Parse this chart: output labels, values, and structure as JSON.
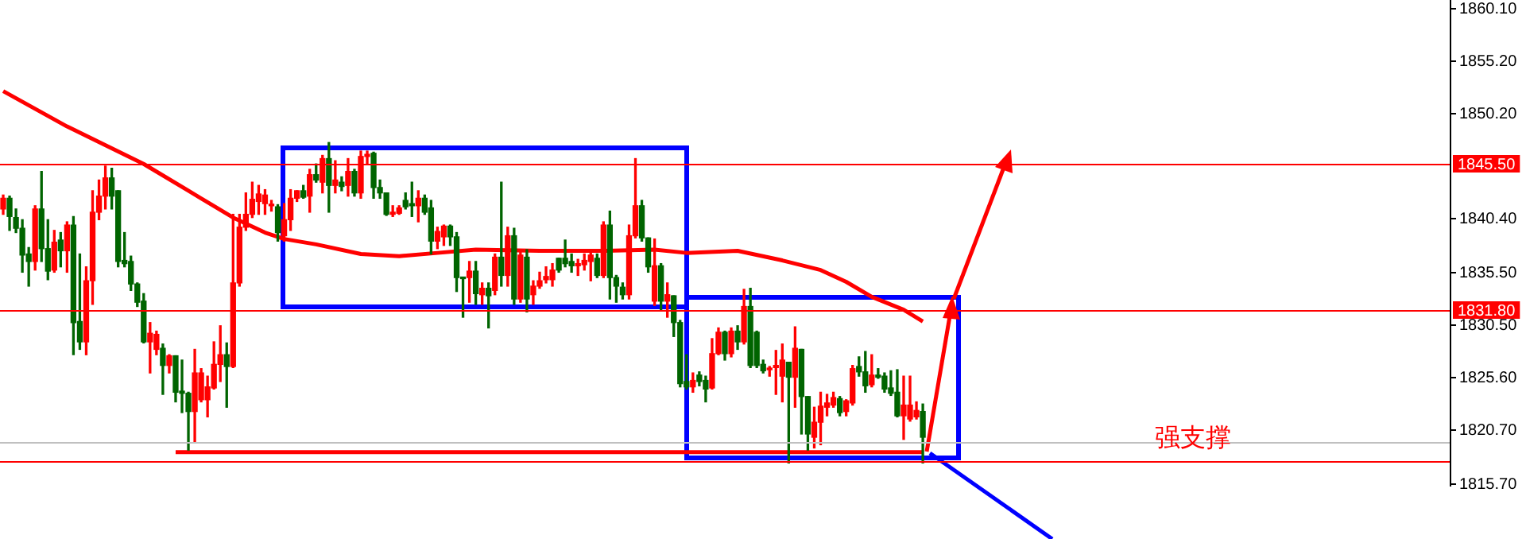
{
  "chart_data": {
    "type": "candlestick",
    "categories": [
      null,
      null,
      null,
      null,
      null,
      null,
      null,
      null,
      null,
      null,
      null,
      null,
      null,
      null,
      null,
      null,
      null,
      null,
      null,
      null,
      null,
      null,
      null,
      null,
      null,
      null,
      null,
      null,
      null,
      null,
      null,
      null,
      null,
      null,
      null,
      null,
      null,
      null,
      null,
      null,
      null,
      null,
      null,
      null,
      null,
      null,
      null,
      null,
      null,
      null,
      null,
      null,
      null,
      null,
      null,
      null,
      null,
      null,
      null,
      null,
      null,
      null,
      null,
      null,
      null,
      null,
      null,
      null,
      null,
      null,
      null,
      null,
      null,
      null,
      null,
      null,
      null,
      null,
      null,
      null,
      null,
      null,
      null,
      null,
      null,
      null,
      null,
      null,
      null,
      null,
      null,
      null,
      null,
      null,
      null,
      null,
      null,
      null,
      null,
      null,
      null,
      null,
      null,
      null,
      null,
      null,
      null,
      null,
      null,
      null,
      null,
      null,
      null,
      null,
      null,
      null,
      null,
      null,
      null,
      null,
      null,
      null,
      null,
      null,
      null,
      null,
      null,
      null,
      null,
      null,
      null,
      null,
      null,
      null,
      null,
      null,
      null,
      null,
      null,
      null,
      null,
      null,
      null,
      null,
      null,
      null,
      null,
      null,
      null,
      null,
      null,
      null,
      null,
      null,
      null,
      null,
      null,
      null,
      null,
      null,
      null,
      null,
      null,
      null,
      null,
      null,
      null,
      null,
      null,
      null,
      null,
      null,
      null,
      null,
      null,
      null,
      null,
      null,
      null,
      null,
      null,
      null,
      null,
      null,
      null,
      null,
      null,
      null,
      null,
      null,
      null,
      null,
      null,
      null,
      null,
      null,
      null,
      null,
      null,
      null,
      null,
      null,
      null,
      null,
      null,
      null,
      null,
      null,
      null,
      null,
      null,
      null,
      null,
      null,
      null,
      null,
      null,
      null,
      null,
      null,
      null,
      null,
      null,
      null,
      null,
      null,
      null
    ],
    "ohlc": [
      [
        1841.3,
        1842.6,
        1840.8,
        1842.3
      ],
      [
        1842.3,
        1842.5,
        1839.3,
        1840.6
      ],
      [
        1840.5,
        1841.3,
        1839.1,
        1839.5
      ],
      [
        1839.5,
        1840.3,
        1835.4,
        1837.0
      ],
      [
        1837.1,
        1837.7,
        1834.1,
        1836.4
      ],
      [
        1836.4,
        1841.6,
        1835.6,
        1841.3
      ],
      [
        1841.3,
        1844.8,
        1836.4,
        1837.6
      ],
      [
        1837.6,
        1840.3,
        1834.7,
        1835.5
      ],
      [
        1835.6,
        1839.3,
        1835.4,
        1838.2
      ],
      [
        1838.4,
        1839.1,
        1835.9,
        1837.4
      ],
      [
        1837.4,
        1840.1,
        1835.4,
        1839.8
      ],
      [
        1839.8,
        1840.6,
        1827.7,
        1830.7
      ],
      [
        1830.8,
        1837.1,
        1828.2,
        1828.9
      ],
      [
        1828.9,
        1835.9,
        1827.7,
        1834.6
      ],
      [
        1834.6,
        1843.0,
        1832.4,
        1841.0
      ],
      [
        1841.0,
        1844.0,
        1840.3,
        1842.5
      ],
      [
        1842.5,
        1845.3,
        1841.3,
        1844.2
      ],
      [
        1844.2,
        1845.1,
        1841.3,
        1842.5
      ],
      [
        1843.0,
        1843.0,
        1835.9,
        1836.4
      ],
      [
        1836.5,
        1839.1,
        1835.9,
        1836.2
      ],
      [
        1836.4,
        1836.9,
        1833.7,
        1834.3
      ],
      [
        1834.3,
        1834.4,
        1832.2,
        1832.6
      ],
      [
        1832.7,
        1833.4,
        1828.8,
        1828.9
      ],
      [
        1828.9,
        1830.7,
        1826.0,
        1829.7
      ],
      [
        1828.2,
        1829.9,
        1827.7,
        1829.6
      ],
      [
        1828.3,
        1828.7,
        1824.0,
        1826.7
      ],
      [
        1826.7,
        1827.7,
        1826.0,
        1827.6
      ],
      [
        1827.6,
        1827.6,
        1823.3,
        1824.2
      ],
      [
        1824.3,
        1827.2,
        1822.3,
        1824.1
      ],
      [
        1824.1,
        1824.2,
        1818.8,
        1822.4
      ],
      [
        1822.4,
        1828.2,
        1819.5,
        1826.0
      ],
      [
        1823.5,
        1826.4,
        1823.3,
        1826.0
      ],
      [
        1823.5,
        1825.7,
        1821.9,
        1824.7
      ],
      [
        1824.6,
        1828.9,
        1824.5,
        1826.8
      ],
      [
        1826.8,
        1830.4,
        1825.2,
        1827.7
      ],
      [
        1827.7,
        1828.8,
        1822.8,
        1826.6
      ],
      [
        1826.6,
        1840.8,
        1826.5,
        1834.4
      ],
      [
        1834.4,
        1840.8,
        1834.1,
        1839.6
      ],
      [
        1839.6,
        1842.8,
        1839.3,
        1840.8
      ],
      [
        1840.8,
        1843.8,
        1840.5,
        1842.2
      ],
      [
        1842.0,
        1843.5,
        1840.8,
        1842.7
      ],
      [
        1841.8,
        1843.1,
        1840.8,
        1842.6
      ],
      [
        1841.6,
        1842.1,
        1841.1,
        1841.7
      ],
      [
        1841.5,
        1841.7,
        1838.3,
        1839.1
      ],
      [
        1838.8,
        1841.8,
        1838.3,
        1840.3
      ],
      [
        1840.3,
        1843.1,
        1839.3,
        1842.3
      ],
      [
        1842.3,
        1843.0,
        1842.0,
        1843.0
      ],
      [
        1843.0,
        1843.5,
        1842.3,
        1842.4
      ],
      [
        1842.5,
        1845.0,
        1841.0,
        1844.5
      ],
      [
        1844.5,
        1845.5,
        1843.8,
        1844.0
      ],
      [
        1843.8,
        1846.3,
        1842.8,
        1846.0
      ],
      [
        1846.0,
        1847.5,
        1841.0,
        1843.5
      ],
      [
        1843.5,
        1845.8,
        1842.8,
        1844.0
      ],
      [
        1843.8,
        1844.3,
        1843.0,
        1843.4
      ],
      [
        1843.5,
        1846.0,
        1842.5,
        1844.8
      ],
      [
        1844.8,
        1845.0,
        1842.5,
        1842.8
      ],
      [
        1842.8,
        1846.7,
        1842.3,
        1846.2
      ],
      [
        1846.2,
        1846.7,
        1845.5,
        1846.4
      ],
      [
        1846.5,
        1846.6,
        1842.3,
        1843.3
      ],
      [
        1843.3,
        1844.0,
        1842.3,
        1842.8
      ],
      [
        1842.8,
        1842.8,
        1840.7,
        1840.8
      ],
      [
        1840.8,
        1841.6,
        1840.6,
        1841.0
      ],
      [
        1840.9,
        1841.6,
        1840.8,
        1841.4
      ],
      [
        1842.1,
        1842.8,
        1841.3,
        1841.5
      ],
      [
        1841.8,
        1843.8,
        1840.6,
        1841.6
      ],
      [
        1841.6,
        1843.0,
        1840.1,
        1842.3
      ],
      [
        1842.3,
        1842.6,
        1840.8,
        1841.0
      ],
      [
        1841.4,
        1842.1,
        1837.1,
        1838.3
      ],
      [
        1838.3,
        1839.6,
        1837.6,
        1839.2
      ],
      [
        1838.7,
        1839.8,
        1837.9,
        1839.7
      ],
      [
        1839.7,
        1839.8,
        1837.9,
        1838.7
      ],
      [
        1838.7,
        1839.1,
        1833.6,
        1834.9
      ],
      [
        1834.9,
        1834.9,
        1831.2,
        1834.8
      ],
      [
        1834.9,
        1836.4,
        1832.6,
        1835.5
      ],
      [
        1835.5,
        1836.4,
        1832.4,
        1833.4
      ],
      [
        1833.3,
        1834.4,
        1832.4,
        1833.9
      ],
      [
        1833.9,
        1834.4,
        1830.2,
        1833.2
      ],
      [
        1833.7,
        1837.1,
        1833.3,
        1836.8
      ],
      [
        1836.8,
        1843.8,
        1834.1,
        1835.1
      ],
      [
        1835.1,
        1839.6,
        1834.1,
        1838.8
      ],
      [
        1838.8,
        1839.5,
        1832.4,
        1832.9
      ],
      [
        1832.9,
        1837.5,
        1832.6,
        1837.0
      ],
      [
        1836.8,
        1837.5,
        1831.7,
        1832.9
      ],
      [
        1833.3,
        1834.6,
        1832.4,
        1834.1
      ],
      [
        1834.1,
        1835.4,
        1833.9,
        1834.6
      ],
      [
        1834.7,
        1835.9,
        1834.4,
        1835.0
      ],
      [
        1834.7,
        1836.2,
        1834.1,
        1835.6
      ],
      [
        1836.7,
        1836.7,
        1835.4,
        1835.6
      ],
      [
        1836.7,
        1838.4,
        1835.9,
        1836.2
      ],
      [
        1836.4,
        1837.1,
        1835.4,
        1836.0
      ],
      [
        1836.0,
        1836.6,
        1835.1,
        1836.2
      ],
      [
        1836.1,
        1837.1,
        1835.6,
        1836.5
      ],
      [
        1836.4,
        1837.2,
        1834.6,
        1837.0
      ],
      [
        1836.7,
        1837.1,
        1834.9,
        1835.1
      ],
      [
        1835.1,
        1840.1,
        1834.9,
        1839.8
      ],
      [
        1839.8,
        1841.1,
        1832.9,
        1834.9
      ],
      [
        1834.9,
        1835.1,
        1832.6,
        1834.1
      ],
      [
        1834.0,
        1834.4,
        1832.9,
        1833.3
      ],
      [
        1833.3,
        1839.8,
        1832.9,
        1838.8
      ],
      [
        1838.8,
        1846.0,
        1838.6,
        1841.6
      ],
      [
        1841.6,
        1842.1,
        1838.3,
        1838.6
      ],
      [
        1838.6,
        1838.6,
        1835.4,
        1835.9
      ],
      [
        1832.7,
        1838.5,
        1832.3,
        1836.0
      ],
      [
        1836.0,
        1836.2,
        1831.9,
        1832.7
      ],
      [
        1832.7,
        1834.4,
        1831.2,
        1833.3
      ],
      [
        1833.2,
        1833.2,
        1829.4,
        1830.7
      ],
      [
        1830.7,
        1830.9,
        1824.7,
        1825.0
      ],
      [
        1825.2,
        1827.7,
        1824.5,
        1824.7
      ],
      [
        1824.7,
        1826.0,
        1824.2,
        1825.3
      ],
      [
        1825.8,
        1826.1,
        1824.8,
        1825.2
      ],
      [
        1825.3,
        1825.7,
        1823.3,
        1824.5
      ],
      [
        1824.6,
        1829.2,
        1824.5,
        1827.8
      ],
      [
        1827.8,
        1830.2,
        1827.7,
        1829.8
      ],
      [
        1829.8,
        1829.9,
        1827.2,
        1827.8
      ],
      [
        1827.8,
        1830.2,
        1827.5,
        1829.9
      ],
      [
        1829.9,
        1830.4,
        1828.2,
        1828.9
      ],
      [
        1828.9,
        1833.8,
        1828.7,
        1832.2
      ],
      [
        1832.2,
        1833.9,
        1826.5,
        1826.7
      ],
      [
        1829.8,
        1829.9,
        1826.5,
        1826.7
      ],
      [
        1826.8,
        1827.2,
        1826.0,
        1826.2
      ],
      [
        1826.3,
        1826.6,
        1825.7,
        1826.4
      ],
      [
        1826.5,
        1828.1,
        1824.0,
        1826.7
      ],
      [
        1825.7,
        1828.7,
        1823.3,
        1827.2
      ],
      [
        1827.0,
        1827.0,
        1817.6,
        1825.6
      ],
      [
        1825.6,
        1830.3,
        1822.8,
        1828.3
      ],
      [
        1828.2,
        1828.2,
        1820.3,
        1823.8
      ],
      [
        1823.8,
        1823.8,
        1818.8,
        1820.3
      ],
      [
        1820.0,
        1822.8,
        1819.0,
        1821.4
      ],
      [
        1821.4,
        1824.2,
        1819.3,
        1822.9
      ],
      [
        1822.8,
        1824.0,
        1822.0,
        1823.2
      ],
      [
        1823.0,
        1824.2,
        1822.8,
        1823.7
      ],
      [
        1823.6,
        1823.8,
        1822.0,
        1822.3
      ],
      [
        1822.4,
        1823.5,
        1822.0,
        1823.4
      ],
      [
        1823.2,
        1826.7,
        1823.0,
        1826.4
      ],
      [
        1826.6,
        1827.5,
        1825.7,
        1826.1
      ],
      [
        1826.1,
        1828.0,
        1824.2,
        1824.8
      ],
      [
        1824.9,
        1827.7,
        1824.7,
        1825.8
      ],
      [
        1825.8,
        1826.4,
        1825.5,
        1825.6
      ],
      [
        1825.7,
        1826.0,
        1824.2,
        1824.5
      ],
      [
        1824.6,
        1826.2,
        1823.9,
        1824.1
      ],
      [
        1824.2,
        1826.3,
        1821.9,
        1822.0
      ],
      [
        1822.0,
        1825.7,
        1819.8,
        1823.0
      ],
      [
        1821.7,
        1825.7,
        1821.5,
        1823.0
      ],
      [
        1821.9,
        1823.3,
        1821.7,
        1822.5
      ],
      [
        1822.4,
        1823.1,
        1817.6,
        1820.0
      ],
      null,
      null,
      null,
      null,
      null,
      null,
      null,
      null,
      null,
      null,
      null,
      null,
      null,
      null,
      null,
      null,
      null,
      null,
      null,
      null,
      null,
      null,
      null,
      null,
      null,
      null,
      null,
      null,
      null,
      null,
      null,
      null,
      null,
      null,
      null,
      null,
      null,
      null,
      null,
      null,
      null,
      null,
      null,
      null,
      null,
      null,
      null,
      null,
      null,
      null,
      null,
      null,
      null,
      null,
      null,
      null,
      null,
      null,
      null,
      null,
      null,
      null,
      null,
      null,
      null,
      null,
      null,
      null,
      null,
      null,
      null,
      null,
      null,
      null,
      null,
      null,
      null,
      null,
      null,
      null,
      null,
      null
    ],
    "colors": [
      "#ff0000",
      "#006400",
      "#006400",
      "#006400",
      "#006400",
      "#ff0000",
      "#006400",
      "#006400",
      "#ff0000",
      "#006400",
      "#ff0000",
      "#006400",
      "#006400",
      "#ff0000",
      "#ff0000",
      "#ff0000",
      "#ff0000",
      "#006400",
      "#006400",
      "#006400",
      "#006400",
      "#006400",
      "#006400",
      "#ff0000",
      "#ff0000",
      "#006400",
      "#ff0000",
      "#006400",
      "#006400",
      "#006400",
      "#ff0000",
      "#ff0000",
      "#ff0000",
      "#ff0000",
      "#ff0000",
      "#006400",
      "#ff0000",
      "#ff0000",
      "#ff0000",
      "#ff0000",
      "#ff0000",
      "#ff0000",
      "#ff0000",
      "#006400",
      "#ff0000",
      "#ff0000",
      "#ff0000",
      "#006400",
      "#ff0000",
      "#006400",
      "#ff0000",
      "#006400",
      "#ff0000",
      "#006400",
      "#ff0000",
      "#006400",
      "#ff0000",
      "#ff0000",
      "#006400",
      "#006400",
      "#006400",
      "#ff0000",
      "#ff0000",
      "#006400",
      "#006400",
      "#ff0000",
      "#006400",
      "#006400",
      "#ff0000",
      "#ff0000",
      "#006400",
      "#006400",
      "#006400",
      "#ff0000",
      "#006400",
      "#ff0000",
      "#006400",
      "#ff0000",
      "#006400",
      "#ff0000",
      "#006400",
      "#ff0000",
      "#006400",
      "#ff0000",
      "#ff0000",
      "#ff0000",
      "#ff0000",
      "#006400",
      "#006400",
      "#006400",
      "#ff0000",
      "#ff0000",
      "#ff0000",
      "#006400",
      "#ff0000",
      "#006400",
      "#006400",
      "#006400",
      "#ff0000",
      "#ff0000",
      "#006400",
      "#006400",
      "#ff0000",
      "#006400",
      "#ff0000",
      "#006400",
      "#006400",
      "#006400",
      "#ff0000",
      "#006400",
      "#006400",
      "#ff0000",
      "#ff0000",
      "#006400",
      "#ff0000",
      "#006400",
      "#ff0000",
      "#006400",
      "#006400",
      "#006400",
      "#ff0000",
      "#ff0000",
      "#ff0000",
      "#006400",
      "#ff0000",
      "#006400",
      "#006400",
      "#ff0000",
      "#ff0000",
      "#ff0000",
      "#ff0000",
      "#006400",
      "#ff0000",
      "#ff0000",
      "#006400",
      "#006400",
      "#ff0000",
      "#006400",
      "#006400",
      "#006400",
      "#006400",
      "#ff0000",
      "#ff0000",
      "#ff0000",
      "#006400",
      null,
      null,
      null,
      null,
      null,
      null,
      null,
      null,
      null,
      null,
      null,
      null,
      null,
      null,
      null,
      null,
      null,
      null,
      null,
      null,
      null,
      null,
      null,
      null,
      null,
      null,
      null,
      null,
      null,
      null,
      null,
      null,
      null,
      null,
      null,
      null,
      null,
      null,
      null,
      null,
      null,
      null,
      null,
      null,
      null,
      null,
      null,
      null,
      null,
      null,
      null,
      null,
      null,
      null,
      null,
      null,
      null,
      null,
      null,
      null,
      null,
      null,
      null,
      null,
      null,
      null,
      null,
      null,
      null,
      null,
      null,
      null,
      null,
      null,
      null,
      null,
      null,
      null,
      null,
      null,
      null,
      null
    ],
    "series": [
      {
        "type": "line",
        "color": "#ff0000",
        "values": [
          1852.3,
          null,
          null,
          null,
          null,
          null,
          null,
          null,
          null,
          null,
          1849.0,
          null,
          null,
          null,
          null,
          null,
          null,
          null,
          null,
          null,
          null,
          null,
          1845.5,
          null,
          null,
          null,
          null,
          null,
          null,
          1843.0,
          null,
          null,
          null,
          null,
          null,
          null,
          1840.5,
          null,
          null,
          null,
          null,
          1839.1,
          null,
          null,
          1838.5,
          null,
          null,
          null,
          null,
          1838.0,
          null,
          null,
          null,
          null,
          null,
          null,
          1837.1,
          null,
          null,
          null,
          null,
          null,
          1836.9,
          null,
          null,
          null,
          null,
          null,
          1837.2,
          null,
          null,
          null,
          null,
          null,
          1837.5,
          null,
          null,
          null,
          null,
          null,
          null,
          null,
          null,
          null,
          1837.4,
          null,
          null,
          null,
          null,
          null,
          null,
          null,
          null,
          null,
          1837.4,
          null,
          null,
          null,
          null,
          null,
          null,
          null,
          1837.5,
          null,
          null,
          null,
          null,
          1837.2,
          null,
          null,
          null,
          null,
          null,
          null,
          null,
          1837.4,
          null,
          null,
          null,
          null,
          null,
          null,
          1836.5,
          null,
          null,
          null,
          null,
          null,
          1835.6,
          null,
          null,
          null,
          1834.5,
          null,
          null,
          null,
          1833.1,
          null,
          null,
          null,
          null,
          1831.9,
          null,
          null,
          1830.8,
          null,
          null,
          null,
          null,
          null,
          null,
          null,
          null,
          null,
          null,
          null,
          null,
          null,
          null,
          null,
          null,
          null,
          null,
          null,
          null,
          null,
          null,
          null,
          null,
          null,
          null,
          null,
          null,
          null,
          null,
          null,
          null,
          null,
          null,
          null,
          null,
          null,
          null,
          null,
          null,
          null,
          null,
          null,
          null,
          null,
          null,
          null,
          null,
          null,
          null,
          null,
          null,
          null,
          null,
          null,
          null,
          null,
          null,
          null,
          null,
          null,
          null,
          null,
          null,
          null,
          null,
          null,
          null,
          null,
          null,
          null,
          null,
          null,
          null,
          null,
          null,
          null,
          null,
          null,
          null,
          null,
          null
        ]
      },
      {
        "type": "line",
        "color": "#ff0000",
        "values": [
          null,
          null,
          null,
          null,
          null,
          null,
          null,
          null,
          null,
          null,
          null,
          null,
          null,
          null,
          null,
          null,
          null,
          null,
          null,
          null,
          null,
          null,
          null,
          null,
          null,
          null,
          null,
          1818.6,
          null,
          null,
          null,
          null,
          null,
          null,
          null,
          null,
          null,
          null,
          null,
          null,
          null,
          null,
          null,
          null,
          null,
          null,
          null,
          null,
          null,
          null,
          null,
          null,
          null,
          null,
          null,
          null,
          null,
          null,
          null,
          null,
          null,
          null,
          null,
          null,
          null,
          null,
          null,
          null,
          null,
          null,
          null,
          null,
          null,
          null,
          null,
          null,
          null,
          null,
          null,
          null,
          null,
          null,
          null,
          null,
          null,
          null,
          null,
          null,
          null,
          null,
          null,
          null,
          null,
          null,
          null,
          null,
          null,
          null,
          null,
          null,
          null,
          null,
          null,
          null,
          null,
          null,
          null,
          null,
          null,
          null,
          null,
          null,
          null,
          null,
          null,
          null,
          null,
          null,
          null,
          null,
          null,
          null,
          null,
          null,
          null,
          null,
          null,
          null,
          null,
          null,
          null,
          null,
          null,
          null,
          null,
          null,
          null,
          null,
          null,
          null,
          null,
          null,
          null,
          null,
          1818.6,
          null,
          null,
          null,
          null,
          null,
          null,
          null,
          null,
          null,
          null,
          null,
          null,
          null,
          null,
          null,
          null,
          null,
          null,
          null,
          null,
          null,
          null,
          null,
          null,
          null,
          null,
          null,
          null,
          null,
          null,
          null,
          null,
          null,
          null,
          null,
          null,
          null,
          null,
          null,
          null,
          null,
          null,
          null,
          null,
          null,
          null,
          null,
          null,
          null,
          null,
          null,
          null,
          null,
          null,
          null,
          null,
          null,
          null,
          null,
          null,
          null,
          null,
          null,
          null,
          null,
          null,
          null,
          null,
          null,
          null,
          null,
          null,
          null,
          null,
          null,
          null,
          null,
          null,
          null,
          null,
          null,
          null
        ]
      }
    ],
    "ylim": [
      1815.4,
      1860.8
    ],
    "yticks": [
      {
        "value": 1815.7,
        "label": "1815.70"
      },
      {
        "value": 1820.7,
        "label": "1820.70"
      },
      {
        "value": 1825.6,
        "label": "1825.60"
      },
      {
        "value": 1830.5,
        "label": "1830.50"
      },
      {
        "value": 1835.5,
        "label": "1835.50"
      },
      {
        "value": 1840.4,
        "label": "1840.40"
      },
      {
        "value": 1850.2,
        "label": "1850.20"
      },
      {
        "value": 1855.2,
        "label": "1855.20"
      },
      {
        "value": 1860.1,
        "label": "1860.10"
      }
    ],
    "tick_labels": "y",
    "grid": false,
    "legend": false,
    "marker": "none",
    "ref_lines": [
      {
        "axis": "y",
        "value": 1845.5,
        "label": "1845.50",
        "color": "#ff0000"
      },
      {
        "axis": "y",
        "value": 1831.8,
        "label": "1831.80",
        "color": "#ff0000"
      },
      {
        "axis": "y",
        "value": 1819.5,
        "label": null,
        "color": "#c0c0c0"
      },
      {
        "axis": "y",
        "value": 1817.7,
        "label": null,
        "color": "#ff0000"
      }
    ],
    "annotations": [
      {
        "text": "强支撑",
        "y": 1819.8
      }
    ]
  }
}
